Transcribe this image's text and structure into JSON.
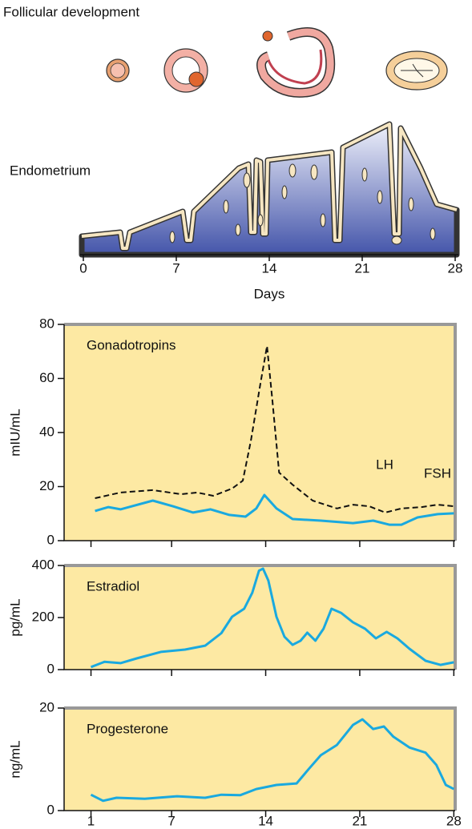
{
  "chart_data": [
    {
      "type": "illustration",
      "title": "Follicular development",
      "label": "Endometrium",
      "xlim": [
        0,
        28
      ],
      "xticks": [
        0,
        7,
        14,
        21,
        28
      ],
      "xlabel": "Days"
    },
    {
      "type": "line",
      "label": "Gonadotropins",
      "ylabel": "mIU/mL",
      "xlim": [
        -1,
        28.1
      ],
      "xticks": [
        1,
        7,
        14,
        21,
        28
      ],
      "xtick_labels": false,
      "ylim": [
        0,
        80
      ],
      "yticks": [
        0,
        20,
        40,
        60,
        80
      ],
      "background": "#fde9a3",
      "series": [
        {
          "name": "LH",
          "color": "#111111",
          "dashed": true,
          "x": [
            1.3,
            3.2,
            5.6,
            7.7,
            8.9,
            10.1,
            11.5,
            12.3,
            12.9,
            13.6,
            14.1,
            14.5,
            15,
            16,
            17.5,
            19.3,
            20.5,
            21.7,
            22.9,
            24.1,
            25.6,
            26.8,
            28
          ],
          "values": [
            15.7,
            17.8,
            18.7,
            17.2,
            17.8,
            16.6,
            19.3,
            22.2,
            37,
            57.8,
            72,
            51.9,
            25.2,
            20.7,
            14.8,
            11.9,
            13.3,
            12.7,
            10.4,
            11.9,
            12.4,
            13.3,
            12.7
          ]
        },
        {
          "name": "FSH",
          "color": "#1aa9df",
          "dashed": false,
          "x": [
            1.3,
            2.3,
            3.2,
            5.6,
            7.1,
            8.6,
            9.9,
            11.3,
            12.5,
            13.3,
            13.9,
            14.8,
            16,
            18.1,
            20.5,
            22,
            23.2,
            24.1,
            25.3,
            26.8,
            28
          ],
          "values": [
            11,
            12.4,
            11.6,
            14.8,
            12.7,
            10.4,
            11.6,
            9.5,
            8.9,
            11.9,
            16.9,
            11.9,
            8,
            7.4,
            6.5,
            7.4,
            5.9,
            5.9,
            8.6,
            9.8,
            10.1
          ]
        }
      ]
    },
    {
      "type": "line",
      "label": "Estradiol",
      "ylabel": "pg/mL",
      "xlim": [
        -1,
        28.1
      ],
      "xticks": [
        1,
        7,
        14,
        21,
        28
      ],
      "xtick_labels": false,
      "ylim": [
        0,
        400
      ],
      "yticks": [
        0,
        200,
        400
      ],
      "background": "#fde9a3",
      "series": [
        {
          "color": "#1aa9df",
          "dashed": false,
          "x": [
            1,
            2,
            3.2,
            4.4,
            6.2,
            8,
            9.5,
            10.7,
            11.5,
            12.4,
            13,
            13.5,
            13.8,
            14.2,
            14.8,
            15.4,
            16,
            16.6,
            17.1,
            17.7,
            18.3,
            18.9,
            19.6,
            20.5,
            21.4,
            22.2,
            23,
            23.8,
            24.7,
            25.9,
            27,
            28
          ],
          "values": [
            10,
            30,
            25,
            43,
            68,
            77,
            92,
            140,
            203,
            234,
            295,
            380,
            388,
            342,
            203,
            126,
            95,
            111,
            142,
            111,
            157,
            234,
            218,
            182,
            157,
            120,
            145,
            120,
            80,
            34,
            18,
            28
          ]
        }
      ]
    },
    {
      "type": "line",
      "label": "Progesterone",
      "ylabel": "ng/mL",
      "xlim": [
        -1,
        28.1
      ],
      "xticks": [
        1,
        7,
        14,
        21,
        28
      ],
      "xtick_labels": true,
      "ylim": [
        0,
        20
      ],
      "yticks": [
        0,
        20
      ],
      "background": "#fde9a3",
      "series": [
        {
          "color": "#1aa9df",
          "dashed": false,
          "x": [
            1,
            1.9,
            2.9,
            5,
            7.4,
            9.5,
            10.7,
            12.1,
            13.3,
            14.8,
            16.3,
            17.2,
            18.1,
            19.3,
            20.5,
            21.2,
            22,
            22.8,
            23.5,
            24.7,
            25.9,
            26.7,
            27.4,
            28
          ],
          "values": [
            3.1,
            1.9,
            2.5,
            2.3,
            2.8,
            2.5,
            3.1,
            3,
            4.2,
            5,
            5.3,
            8.1,
            10.8,
            12.8,
            16.7,
            17.8,
            15.9,
            16.4,
            14.4,
            12.3,
            11.3,
            8.9,
            5,
            4.2
          ]
        }
      ]
    }
  ]
}
